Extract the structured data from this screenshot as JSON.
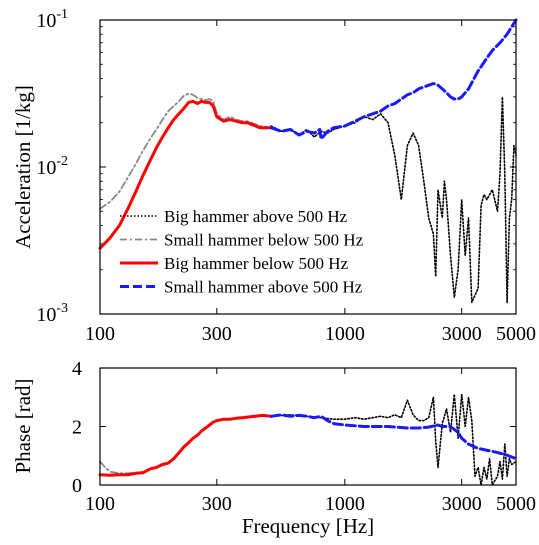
{
  "chart_data": [
    {
      "type": "line",
      "xlabel": "",
      "ylabel": "Acceleration [1/kg]",
      "xscale": "log",
      "yscale": "log",
      "xlim": [
        100,
        5000
      ],
      "ylim": [
        0.001,
        0.1
      ],
      "x_ticks": [
        100,
        300,
        1000,
        3000,
        5000
      ],
      "x_tick_labels": [
        "100",
        "300",
        "1000",
        "3000",
        "5000"
      ],
      "y_ticks": [
        0.001,
        0.01,
        0.1
      ],
      "y_tick_base": "10",
      "y_tick_exponents": [
        "-3",
        "-2",
        "-1"
      ],
      "grid": false,
      "legend_position": "bottom-left",
      "series": [
        {
          "name": "Big hammer above 500 Hz",
          "color": "#000000",
          "style": "dotted",
          "x": [
            500,
            550,
            600,
            650,
            700,
            750,
            800,
            850,
            900,
            1000,
            1100,
            1200,
            1300,
            1400,
            1500,
            1600,
            1700,
            1800,
            1900,
            2000,
            2100,
            2200,
            2300,
            2350,
            2400,
            2500,
            2550,
            2600,
            2700,
            2800,
            2900,
            3000,
            3100,
            3200,
            3300,
            3500,
            3600,
            3700,
            3800,
            4000,
            4200,
            4300,
            4400,
            4500,
            4600,
            4700,
            4800,
            4900,
            5000
          ],
          "values": [
            0.019,
            0.0175,
            0.018,
            0.0165,
            0.018,
            0.016,
            0.0175,
            0.017,
            0.018,
            0.019,
            0.02,
            0.022,
            0.021,
            0.023,
            0.02,
            0.012,
            0.006,
            0.014,
            0.017,
            0.014,
            0.008,
            0.0045,
            0.0035,
            0.0018,
            0.007,
            0.0045,
            0.008,
            0.006,
            0.0025,
            0.0013,
            0.002,
            0.006,
            0.0025,
            0.0045,
            0.0012,
            0.0015,
            0.0055,
            0.0065,
            0.006,
            0.007,
            0.005,
            0.009,
            0.03,
            0.009,
            0.0012,
            0.0045,
            0.006,
            0.014,
            0.012
          ]
        },
        {
          "name": "Small hammer below 500 Hz",
          "color": "#888888",
          "style": "dashdot",
          "x": [
            100,
            110,
            120,
            130,
            140,
            150,
            160,
            170,
            180,
            190,
            200,
            210,
            220,
            230,
            240,
            250,
            260,
            270,
            280,
            290,
            300,
            320,
            340,
            360,
            380,
            400,
            450,
            500
          ],
          "values": [
            0.0052,
            0.0058,
            0.0068,
            0.0085,
            0.0105,
            0.013,
            0.0155,
            0.018,
            0.021,
            0.024,
            0.026,
            0.028,
            0.0305,
            0.0315,
            0.031,
            0.0295,
            0.029,
            0.0285,
            0.029,
            0.028,
            0.023,
            0.021,
            0.022,
            0.021,
            0.0205,
            0.0205,
            0.019,
            0.0185
          ]
        },
        {
          "name": "Big hammer below 500 Hz",
          "color": "#ff0000",
          "style": "solid",
          "x": [
            100,
            110,
            120,
            130,
            140,
            150,
            160,
            170,
            180,
            190,
            200,
            210,
            220,
            230,
            240,
            250,
            260,
            270,
            280,
            290,
            300,
            320,
            340,
            360,
            380,
            400,
            450,
            500
          ],
          "values": [
            0.0028,
            0.0033,
            0.004,
            0.0052,
            0.0068,
            0.0088,
            0.011,
            0.0135,
            0.016,
            0.0185,
            0.021,
            0.023,
            0.025,
            0.0275,
            0.028,
            0.027,
            0.028,
            0.0275,
            0.0275,
            0.026,
            0.022,
            0.0205,
            0.021,
            0.0205,
            0.02,
            0.02,
            0.0185,
            0.0185
          ]
        },
        {
          "name": "Small hammer above 500 Hz",
          "color": "#1a1aff",
          "style": "dashed",
          "x": [
            500,
            550,
            600,
            650,
            700,
            750,
            790,
            800,
            850,
            900,
            1000,
            1100,
            1200,
            1300,
            1400,
            1500,
            1600,
            1700,
            1800,
            1900,
            2000,
            2100,
            2200,
            2300,
            2400,
            2500,
            2600,
            2700,
            2800,
            2900,
            3000,
            3200,
            3500,
            3800,
            4000,
            4300,
            4600,
            5000
          ],
          "values": [
            0.0185,
            0.0175,
            0.018,
            0.0165,
            0.0175,
            0.017,
            0.018,
            0.0155,
            0.0175,
            0.0185,
            0.019,
            0.0205,
            0.022,
            0.023,
            0.024,
            0.026,
            0.027,
            0.029,
            0.031,
            0.032,
            0.034,
            0.035,
            0.036,
            0.037,
            0.036,
            0.034,
            0.032,
            0.03,
            0.029,
            0.029,
            0.03,
            0.034,
            0.045,
            0.055,
            0.062,
            0.07,
            0.08,
            0.1
          ]
        }
      ]
    },
    {
      "type": "line",
      "xlabel": "Frequency [Hz]",
      "ylabel": "Phase [rad]",
      "xscale": "log",
      "xlim": [
        100,
        5000
      ],
      "ylim": [
        0,
        4
      ],
      "x_ticks": [
        100,
        300,
        1000,
        3000,
        5000
      ],
      "x_tick_labels": [
        "100",
        "300",
        "1000",
        "3000",
        "5000"
      ],
      "y_ticks": [
        0,
        2,
        4
      ],
      "y_tick_labels": [
        "0",
        "2",
        "4"
      ],
      "grid": false,
      "series": [
        {
          "color": "#000000",
          "style": "dotted",
          "x": [
            500,
            600,
            700,
            800,
            900,
            1000,
            1100,
            1200,
            1300,
            1400,
            1500,
            1600,
            1700,
            1800,
            1900,
            2000,
            2100,
            2200,
            2300,
            2350,
            2400,
            2500,
            2600,
            2700,
            2800,
            2900,
            3000,
            3100,
            3200,
            3300,
            3400,
            3500,
            3600,
            3700,
            3800,
            3900,
            4000,
            4200,
            4300,
            4400,
            4500,
            4600,
            4700,
            4800,
            5000
          ],
          "values": [
            2.35,
            2.4,
            2.35,
            2.3,
            2.25,
            2.25,
            2.3,
            2.25,
            2.3,
            2.35,
            2.3,
            2.4,
            2.3,
            2.9,
            2.4,
            2.2,
            2.2,
            2.3,
            3.0,
            1.5,
            0.6,
            2.1,
            2.6,
            1.8,
            3.1,
            1.6,
            3.1,
            2.0,
            3.0,
            2.2,
            0.3,
            0.6,
            0.0,
            0.6,
            0.2,
            0.9,
            0.0,
            0.3,
            0.8,
            0.2,
            1.4,
            0.3,
            0.9,
            0.7,
            0.8
          ]
        },
        {
          "color": "#888888",
          "style": "dashdot",
          "x": [
            100,
            105,
            110,
            120,
            130,
            140,
            150
          ],
          "values": [
            0.8,
            0.6,
            0.45,
            0.4,
            0.4,
            0.42,
            0.45
          ]
        },
        {
          "color": "#ff0000",
          "style": "solid",
          "x": [
            100,
            110,
            120,
            130,
            140,
            150,
            160,
            170,
            180,
            190,
            200,
            210,
            220,
            230,
            240,
            250,
            260,
            270,
            280,
            290,
            300,
            320,
            340,
            360,
            380,
            400,
            430,
            460,
            500
          ],
          "values": [
            0.35,
            0.33,
            0.35,
            0.35,
            0.4,
            0.42,
            0.55,
            0.6,
            0.7,
            0.75,
            0.9,
            1.1,
            1.3,
            1.45,
            1.6,
            1.7,
            1.85,
            1.95,
            2.05,
            2.15,
            2.2,
            2.25,
            2.25,
            2.28,
            2.3,
            2.32,
            2.35,
            2.38,
            2.35
          ]
        },
        {
          "color": "#1a1aff",
          "style": "dashed",
          "x": [
            500,
            550,
            600,
            650,
            700,
            750,
            800,
            850,
            900,
            1000,
            1200,
            1500,
            1800,
            2000,
            2200,
            2400,
            2500,
            2700,
            2900,
            3000,
            3200,
            3500,
            4000,
            4500,
            5000
          ],
          "values": [
            2.35,
            2.4,
            2.35,
            2.38,
            2.35,
            2.3,
            2.35,
            2.2,
            2.1,
            2.05,
            2.0,
            2.0,
            1.95,
            1.95,
            1.98,
            2.05,
            2.0,
            2.0,
            1.8,
            1.6,
            1.4,
            1.25,
            1.15,
            1.05,
            0.9
          ]
        }
      ]
    }
  ]
}
